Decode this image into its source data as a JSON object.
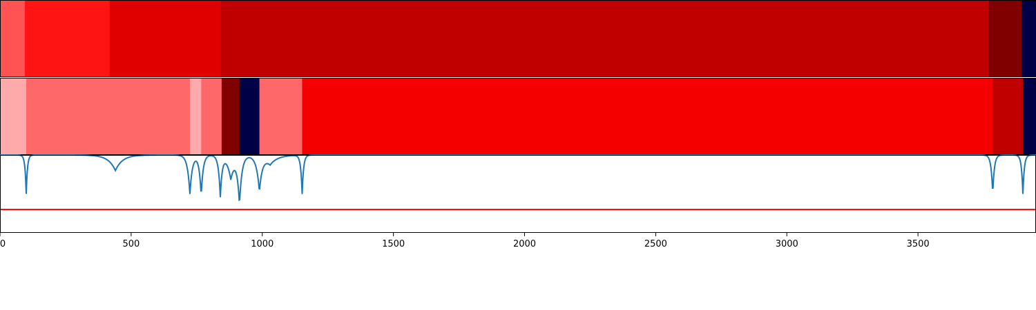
{
  "chart_data": [
    {
      "type": "heatmap",
      "panel": "upper-band",
      "xlim": [
        0,
        3950
      ],
      "segments": [
        {
          "start": 0,
          "end": 95,
          "color": "#ff5252"
        },
        {
          "start": 95,
          "end": 418,
          "color": "#ff1414"
        },
        {
          "start": 418,
          "end": 842,
          "color": "#e10000"
        },
        {
          "start": 842,
          "end": 3770,
          "color": "#c00000"
        },
        {
          "start": 3770,
          "end": 3895,
          "color": "#800000"
        },
        {
          "start": 3895,
          "end": 3950,
          "color": "#000047"
        }
      ]
    },
    {
      "type": "heatmap",
      "panel": "lower-band",
      "xlim": [
        0,
        3950
      ],
      "segments": [
        {
          "start": 0,
          "end": 100,
          "color": "#ffaaaa"
        },
        {
          "start": 100,
          "end": 724,
          "color": "#ff6868"
        },
        {
          "start": 724,
          "end": 767,
          "color": "#ffaaaa"
        },
        {
          "start": 767,
          "end": 845,
          "color": "#ff6868"
        },
        {
          "start": 845,
          "end": 913,
          "color": "#800000"
        },
        {
          "start": 913,
          "end": 989,
          "color": "#000047"
        },
        {
          "start": 989,
          "end": 1152,
          "color": "#ff6868"
        },
        {
          "start": 1152,
          "end": 3785,
          "color": "#f50000"
        },
        {
          "start": 3785,
          "end": 3900,
          "color": "#c00000"
        },
        {
          "start": 3900,
          "end": 3950,
          "color": "#000047"
        }
      ]
    },
    {
      "type": "line",
      "panel": "signal",
      "xlim": [
        0,
        3950
      ],
      "ylim": [
        0,
        1
      ],
      "x_ticks": [
        0,
        500,
        1000,
        1500,
        2000,
        2500,
        3000,
        3500
      ],
      "threshold": 0.3,
      "threshold_color": "#ff0000",
      "series_color": "#1f77b4",
      "baseline": 1.0,
      "dips": [
        {
          "x": 100,
          "depth": 0.5,
          "width": 6
        },
        {
          "x": 440,
          "depth": 0.2,
          "width": 35
        },
        {
          "x": 724,
          "depth": 0.5,
          "width": 12
        },
        {
          "x": 767,
          "depth": 0.52,
          "width": 10
        },
        {
          "x": 840,
          "depth": 0.52,
          "width": 9
        },
        {
          "x": 880,
          "depth": 0.3,
          "width": 20
        },
        {
          "x": 913,
          "depth": 0.6,
          "width": 12
        },
        {
          "x": 989,
          "depth": 0.44,
          "width": 14
        },
        {
          "x": 1030,
          "depth": 0.12,
          "width": 40
        },
        {
          "x": 1152,
          "depth": 0.5,
          "width": 7
        },
        {
          "x": 3785,
          "depth": 0.5,
          "width": 8
        },
        {
          "x": 3900,
          "depth": 0.5,
          "width": 7
        }
      ]
    }
  ]
}
